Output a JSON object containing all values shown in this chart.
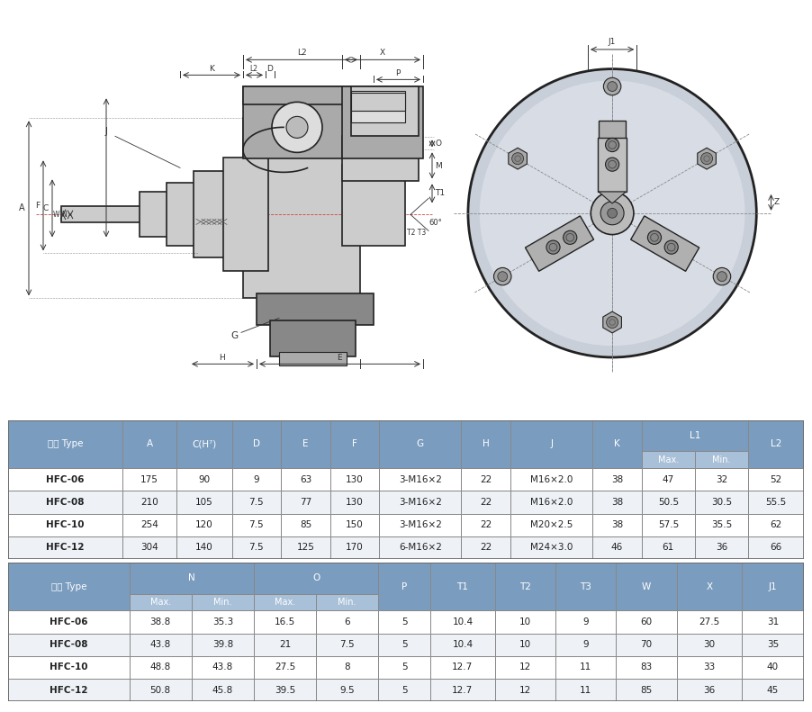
{
  "table1_data": [
    [
      "HFC-06",
      "175",
      "90",
      "9",
      "63",
      "130",
      "3-M16×2",
      "22",
      "M16×2.0",
      "38",
      "47",
      "32",
      "52"
    ],
    [
      "HFC-08",
      "210",
      "105",
      "7.5",
      "77",
      "130",
      "3-M16×2",
      "22",
      "M16×2.0",
      "38",
      "50.5",
      "30.5",
      "55.5"
    ],
    [
      "HFC-10",
      "254",
      "120",
      "7.5",
      "85",
      "150",
      "3-M16×2",
      "22",
      "M20×2.5",
      "38",
      "57.5",
      "35.5",
      "62"
    ],
    [
      "HFC-12",
      "304",
      "140",
      "7.5",
      "125",
      "170",
      "6-M16×2",
      "22",
      "M24×3.0",
      "46",
      "61",
      "36",
      "66"
    ]
  ],
  "table2_data": [
    [
      "HFC-06",
      "38.8",
      "35.3",
      "16.5",
      "6",
      "5",
      "10.4",
      "10",
      "9",
      "60",
      "27.5",
      "31"
    ],
    [
      "HFC-08",
      "43.8",
      "39.8",
      "21",
      "7.5",
      "5",
      "10.4",
      "10",
      "9",
      "70",
      "30",
      "35"
    ],
    [
      "HFC-10",
      "48.8",
      "43.8",
      "27.5",
      "8",
      "5",
      "12.7",
      "12",
      "11",
      "83",
      "33",
      "40"
    ],
    [
      "HFC-12",
      "50.8",
      "45.8",
      "39.5",
      "9.5",
      "5",
      "12.7",
      "12",
      "11",
      "85",
      "36",
      "45"
    ]
  ],
  "header_bg": "#7a9cbf",
  "subheader_bg": "#a8c0d8",
  "row_bg_even": "#ffffff",
  "row_bg_odd": "#eef2f7",
  "header_text": "#ffffff",
  "data_text": "#222222",
  "draw_line": "#555555",
  "draw_fill_light": "#d8d8d8",
  "draw_fill_mid": "#b8b8b8",
  "draw_fill_dark": "#888888",
  "draw_bg": "#ffffff"
}
